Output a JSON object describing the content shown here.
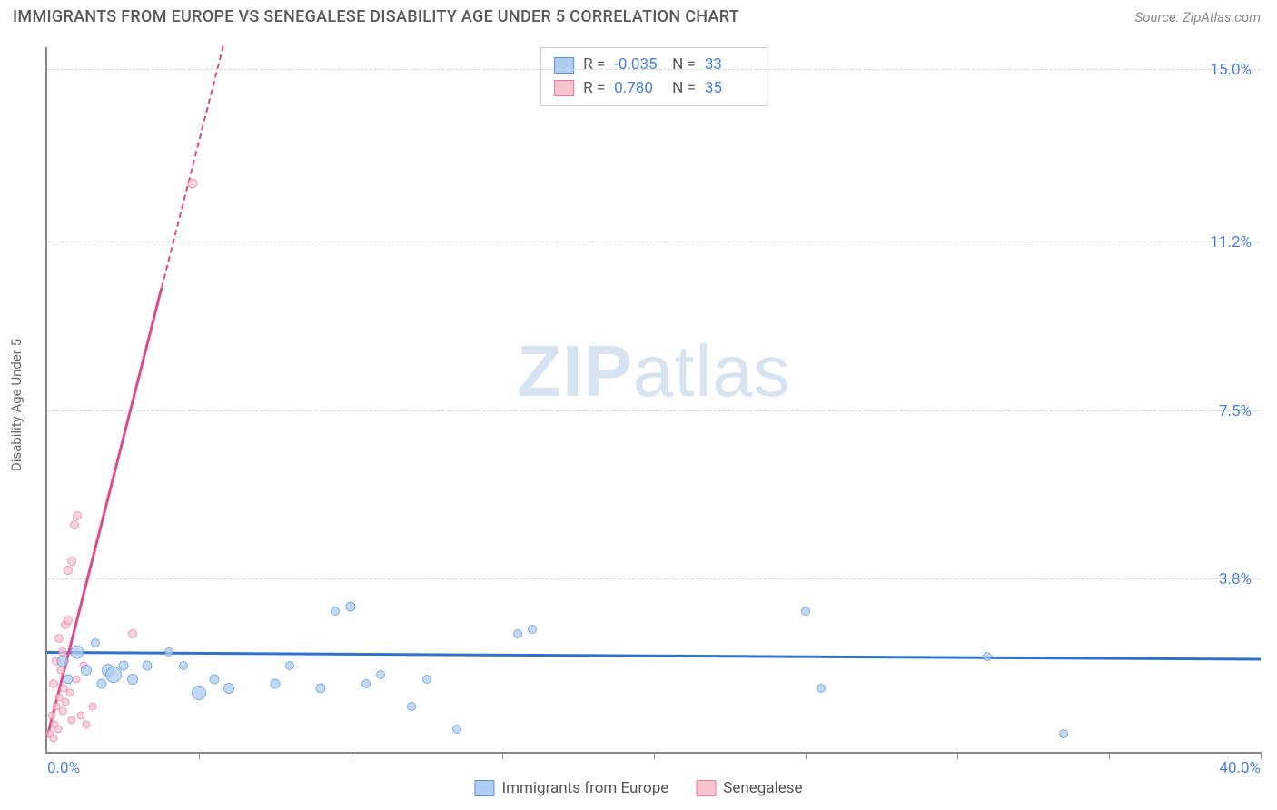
{
  "title": "IMMIGRANTS FROM EUROPE VS SENEGALESE DISABILITY AGE UNDER 5 CORRELATION CHART",
  "source": "Source: ZipAtlas.com",
  "y_axis_label": "Disability Age Under 5",
  "watermark_bold": "ZIP",
  "watermark_light": "atlas",
  "chart": {
    "type": "scatter",
    "xlim": [
      0,
      40
    ],
    "ylim": [
      0,
      15.5
    ],
    "x_min_label": "0.0%",
    "x_max_label": "40.0%",
    "y_ticks": [
      {
        "v": 3.8,
        "label": "3.8%"
      },
      {
        "v": 7.5,
        "label": "7.5%"
      },
      {
        "v": 11.2,
        "label": "11.2%"
      },
      {
        "v": 15.0,
        "label": "15.0%"
      }
    ],
    "x_tick_positions": [
      5,
      10,
      15,
      20,
      25,
      30,
      35,
      40
    ],
    "grid_color": "#d5d5d5",
    "background_color": "#ffffff",
    "series": [
      {
        "name": "Immigrants from Europe",
        "fill": "#aecdf2",
        "stroke": "#5a93d8",
        "opacity": 0.75,
        "r_label": "R =",
        "r_value": "-0.035",
        "n_label": "N =",
        "n_value": "33",
        "trend": {
          "y0": 2.15,
          "y40": 2.0,
          "color": "#2d72d0",
          "width": 3
        },
        "points": [
          {
            "x": 0.5,
            "y": 2.0,
            "s": 13
          },
          {
            "x": 0.7,
            "y": 1.6,
            "s": 11
          },
          {
            "x": 1.0,
            "y": 2.2,
            "s": 15
          },
          {
            "x": 1.3,
            "y": 1.8,
            "s": 12
          },
          {
            "x": 1.6,
            "y": 2.4,
            "s": 10
          },
          {
            "x": 1.8,
            "y": 1.5,
            "s": 11
          },
          {
            "x": 2.0,
            "y": 1.8,
            "s": 14
          },
          {
            "x": 2.2,
            "y": 1.7,
            "s": 18
          },
          {
            "x": 2.5,
            "y": 1.9,
            "s": 11
          },
          {
            "x": 2.8,
            "y": 1.6,
            "s": 12
          },
          {
            "x": 3.3,
            "y": 1.9,
            "s": 11
          },
          {
            "x": 4.0,
            "y": 2.2,
            "s": 10
          },
          {
            "x": 4.5,
            "y": 1.9,
            "s": 10
          },
          {
            "x": 5.0,
            "y": 1.3,
            "s": 16
          },
          {
            "x": 5.5,
            "y": 1.6,
            "s": 11
          },
          {
            "x": 6.0,
            "y": 1.4,
            "s": 12
          },
          {
            "x": 7.5,
            "y": 1.5,
            "s": 11
          },
          {
            "x": 8.0,
            "y": 1.9,
            "s": 10
          },
          {
            "x": 9.0,
            "y": 1.4,
            "s": 11
          },
          {
            "x": 9.5,
            "y": 3.1,
            "s": 10
          },
          {
            "x": 10.0,
            "y": 3.2,
            "s": 11
          },
          {
            "x": 10.5,
            "y": 1.5,
            "s": 10
          },
          {
            "x": 11.0,
            "y": 1.7,
            "s": 10
          },
          {
            "x": 12.0,
            "y": 1.0,
            "s": 10
          },
          {
            "x": 12.5,
            "y": 1.6,
            "s": 10
          },
          {
            "x": 13.5,
            "y": 0.5,
            "s": 10
          },
          {
            "x": 15.5,
            "y": 2.6,
            "s": 10
          },
          {
            "x": 16.0,
            "y": 2.7,
            "s": 10
          },
          {
            "x": 25.0,
            "y": 3.1,
            "s": 10
          },
          {
            "x": 25.5,
            "y": 1.4,
            "s": 10
          },
          {
            "x": 31.0,
            "y": 2.1,
            "s": 10
          },
          {
            "x": 33.5,
            "y": 0.4,
            "s": 10
          }
        ]
      },
      {
        "name": "Senegalese",
        "fill": "#f7c4d0",
        "stroke": "#e87ba0",
        "opacity": 0.75,
        "r_label": "R =",
        "r_value": "0.780",
        "n_label": "N =",
        "n_value": "35",
        "trend": {
          "y0": 0.3,
          "x_at_ymax": 5.8,
          "color": "#e04888",
          "width": 3,
          "dash_beyond": true
        },
        "points": [
          {
            "x": 0.1,
            "y": 0.4,
            "s": 9
          },
          {
            "x": 0.15,
            "y": 0.8,
            "s": 9
          },
          {
            "x": 0.2,
            "y": 0.3,
            "s": 9
          },
          {
            "x": 0.2,
            "y": 1.5,
            "s": 10
          },
          {
            "x": 0.25,
            "y": 0.6,
            "s": 9
          },
          {
            "x": 0.3,
            "y": 1.0,
            "s": 9
          },
          {
            "x": 0.3,
            "y": 2.0,
            "s": 10
          },
          {
            "x": 0.35,
            "y": 0.5,
            "s": 9
          },
          {
            "x": 0.4,
            "y": 2.5,
            "s": 10
          },
          {
            "x": 0.4,
            "y": 1.2,
            "s": 9
          },
          {
            "x": 0.45,
            "y": 1.8,
            "s": 9
          },
          {
            "x": 0.5,
            "y": 2.2,
            "s": 10
          },
          {
            "x": 0.5,
            "y": 0.9,
            "s": 9
          },
          {
            "x": 0.55,
            "y": 1.4,
            "s": 9
          },
          {
            "x": 0.6,
            "y": 2.8,
            "s": 10
          },
          {
            "x": 0.6,
            "y": 1.1,
            "s": 9
          },
          {
            "x": 0.7,
            "y": 2.9,
            "s": 10
          },
          {
            "x": 0.7,
            "y": 4.0,
            "s": 10
          },
          {
            "x": 0.75,
            "y": 1.3,
            "s": 9
          },
          {
            "x": 0.8,
            "y": 4.2,
            "s": 10
          },
          {
            "x": 0.8,
            "y": 0.7,
            "s": 9
          },
          {
            "x": 0.9,
            "y": 5.0,
            "s": 10
          },
          {
            "x": 0.95,
            "y": 1.6,
            "s": 9
          },
          {
            "x": 1.0,
            "y": 5.2,
            "s": 10
          },
          {
            "x": 1.1,
            "y": 0.8,
            "s": 9
          },
          {
            "x": 1.2,
            "y": 1.9,
            "s": 9
          },
          {
            "x": 1.3,
            "y": 0.6,
            "s": 9
          },
          {
            "x": 1.5,
            "y": 1.0,
            "s": 9
          },
          {
            "x": 2.8,
            "y": 2.6,
            "s": 10
          },
          {
            "x": 4.8,
            "y": 12.5,
            "s": 11
          }
        ]
      }
    ]
  },
  "legend": {
    "item1": "Immigrants from Europe",
    "item2": "Senegalese"
  }
}
